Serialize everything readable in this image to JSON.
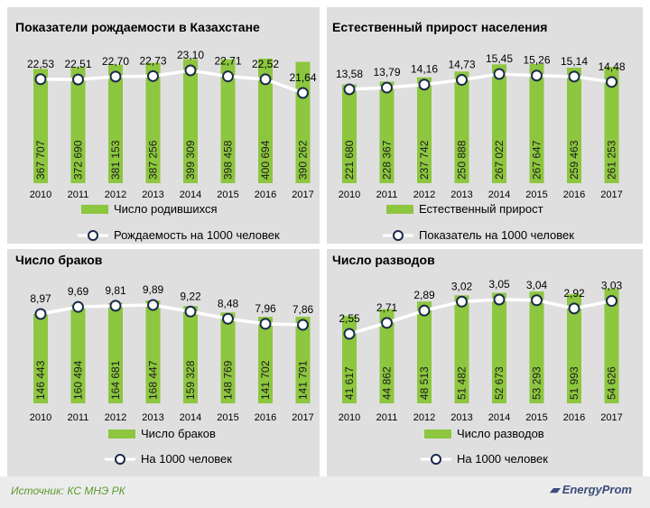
{
  "chart_data": [
    {
      "type": "bar",
      "title": "Показатели рождаемости в Казахстане",
      "categories": [
        "2010",
        "2011",
        "2012",
        "2013",
        "2014",
        "2015",
        "2016",
        "2017"
      ],
      "series": [
        {
          "name": "Число родившихся",
          "kind": "bar",
          "values": [
            367707,
            372690,
            381153,
            387256,
            399309,
            398458,
            400694,
            390262
          ],
          "labels": [
            "367 707",
            "372 690",
            "381 153",
            "387 256",
            "399 309",
            "398 458",
            "400 694",
            "390 262"
          ],
          "color": "#8dc63f"
        },
        {
          "name": "Рождаемость на 1000 человек",
          "kind": "line",
          "values": [
            22.53,
            22.51,
            22.7,
            22.73,
            23.1,
            22.71,
            22.52,
            21.64
          ],
          "labels": [
            "22,53",
            "22,51",
            "22,70",
            "22,73",
            "23,10",
            "22,71",
            "22,52",
            "21,64"
          ],
          "color": "#ffffff"
        }
      ]
    },
    {
      "type": "bar",
      "title": "Естественный  прирост населения",
      "categories": [
        "2010",
        "2011",
        "2012",
        "2013",
        "2014",
        "2015",
        "2016",
        "2017"
      ],
      "series": [
        {
          "name": "Естественный прирост",
          "kind": "bar",
          "values": [
            221680,
            228367,
            237742,
            250888,
            267022,
            267647,
            259463,
            261253
          ],
          "labels": [
            "221 680",
            "228 367",
            "237 742",
            "250 888",
            "267 022",
            "267 647",
            "259 463",
            "261 253"
          ],
          "color": "#8dc63f"
        },
        {
          "name": "Показатель на 1000 человек",
          "kind": "line",
          "values": [
            13.58,
            13.79,
            14.16,
            14.73,
            15.45,
            15.26,
            15.14,
            14.48
          ],
          "labels": [
            "13,58",
            "13,79",
            "14,16",
            "14,73",
            "15,45",
            "15,26",
            "15,14",
            "14,48"
          ],
          "color": "#ffffff"
        }
      ]
    },
    {
      "type": "bar",
      "title": "Число браков",
      "categories": [
        "2010",
        "2011",
        "2012",
        "2013",
        "2014",
        "2015",
        "2016",
        "2017"
      ],
      "series": [
        {
          "name": "Число браков",
          "kind": "bar",
          "values": [
            146443,
            160494,
            164681,
            168447,
            159328,
            148769,
            141702,
            141791
          ],
          "labels": [
            "146 443",
            "160 494",
            "164 681",
            "168 447",
            "159 328",
            "148 769",
            "141 702",
            "141 791"
          ],
          "color": "#8dc63f"
        },
        {
          "name": "На 1000 человек",
          "kind": "line",
          "values": [
            8.97,
            9.69,
            9.81,
            9.89,
            9.22,
            8.48,
            7.96,
            7.86
          ],
          "labels": [
            "8,97",
            "9,69",
            "9,81",
            "9,89",
            "9,22",
            "8,48",
            "7,96",
            "7,86"
          ],
          "color": "#ffffff"
        }
      ]
    },
    {
      "type": "bar",
      "title": "Число  разводов",
      "categories": [
        "2010",
        "2011",
        "2012",
        "2013",
        "2014",
        "2015",
        "2016",
        "2017"
      ],
      "series": [
        {
          "name": "Число разводов",
          "kind": "bar",
          "values": [
            41617,
            44862,
            48513,
            51482,
            52673,
            53293,
            51993,
            54626
          ],
          "labels": [
            "41 617",
            "44 862",
            "48 513",
            "51 482",
            "52 673",
            "53 293",
            "51 993",
            "54 626"
          ],
          "color": "#8dc63f"
        },
        {
          "name": "На 1000 человек",
          "kind": "line",
          "values": [
            2.55,
            2.71,
            2.89,
            3.02,
            3.05,
            3.04,
            2.92,
            3.03
          ],
          "labels": [
            "2,55",
            "2,71",
            "2,89",
            "3,02",
            "3,05",
            "3,04",
            "2,92",
            "3,03"
          ],
          "color": "#ffffff"
        }
      ]
    }
  ],
  "footer": {
    "source": "Источник: КС МНЭ РК",
    "brand": "EnergyProm"
  },
  "colors": {
    "bar": "#8dc63f",
    "panel_background": "#dfdfdf",
    "line": "#ffffff",
    "source_text": "#5c9a2e",
    "brand_text": "#3b4d7a"
  }
}
